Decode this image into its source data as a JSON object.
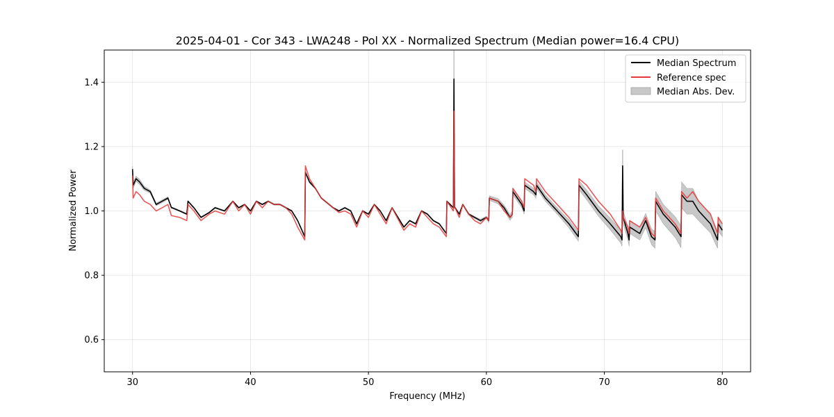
{
  "chart_data": {
    "type": "line",
    "title": "2025-04-01 - Cor 343 - LWA248 - Pol XX - Normalized Spectrum (Median power=16.4 CPU)",
    "xlabel": "Frequency (MHz)",
    "ylabel": "Normalized Power",
    "xlim": [
      27.6,
      82.4
    ],
    "ylim": [
      0.5,
      1.5
    ],
    "xticks": [
      30,
      40,
      50,
      60,
      70,
      80
    ],
    "yticks": [
      0.6,
      0.8,
      1.0,
      1.2,
      1.4
    ],
    "xtick_labels": [
      "30",
      "40",
      "50",
      "60",
      "70",
      "80"
    ],
    "ytick_labels": [
      "0.6",
      "0.8",
      "1.0",
      "1.2",
      "1.4"
    ],
    "grid": true,
    "legend_position": "top-right",
    "series": [
      {
        "name": "Median Spectrum",
        "color": "#000000",
        "x": [
          30,
          30.05,
          30.3,
          30.6,
          31.0,
          31.5,
          32.0,
          32.5,
          33.0,
          33.3,
          33.35,
          34.0,
          34.6,
          34.7,
          35.2,
          35.8,
          36.5,
          37.0,
          37.8,
          38.5,
          39.0,
          39.5,
          40.0,
          40.5,
          41.0,
          41.5,
          42.0,
          42.5,
          43.0,
          43.5,
          44.0,
          44.6,
          44.65,
          45.0,
          45.5,
          46.0,
          47.0,
          47.5,
          48.0,
          48.5,
          49.0,
          49.5,
          50.0,
          50.5,
          51.0,
          51.5,
          52.0,
          53.0,
          53.5,
          54.0,
          54.5,
          55.0,
          55.5,
          56.0,
          56.6,
          56.65,
          57.2,
          57.25,
          57.3,
          57.35,
          57.7,
          58.0,
          58.5,
          59.0,
          59.5,
          60.0,
          60.2,
          60.25,
          61.0,
          61.5,
          62.0,
          62.2,
          62.25,
          63.0,
          63.2,
          63.25,
          64.0,
          64.2,
          64.25,
          65.0,
          66.0,
          67.0,
          67.8,
          67.85,
          68.5,
          69.5,
          70.5,
          71.4,
          71.5,
          71.55,
          71.6,
          72.0,
          72.1,
          72.15,
          73.0,
          73.5,
          74.0,
          74.3,
          74.35,
          75.0,
          76.0,
          76.5,
          76.55,
          77.0,
          77.5,
          78.0,
          79.0,
          79.6,
          79.65,
          80.0
        ],
        "values": [
          1.13,
          1.08,
          1.1,
          1.09,
          1.07,
          1.06,
          1.02,
          1.03,
          1.04,
          1.01,
          1.01,
          1.0,
          0.99,
          1.03,
          1.01,
          0.98,
          0.995,
          1.01,
          1.0,
          1.03,
          1.01,
          1.02,
          1.0,
          1.03,
          1.02,
          1.03,
          1.02,
          1.02,
          1.01,
          1.0,
          0.97,
          0.92,
          1.12,
          1.09,
          1.07,
          1.04,
          1.01,
          1.0,
          1.01,
          1.0,
          0.96,
          1.0,
          0.99,
          1.02,
          1.0,
          0.97,
          1.01,
          0.95,
          0.97,
          0.96,
          1.0,
          0.99,
          0.97,
          0.96,
          0.93,
          1.03,
          1.01,
          1.41,
          1.01,
          1.01,
          0.99,
          1.02,
          0.99,
          0.98,
          0.97,
          0.98,
          0.97,
          1.04,
          1.03,
          1.01,
          0.98,
          0.99,
          1.06,
          1.02,
          1.0,
          1.08,
          1.06,
          1.05,
          1.08,
          1.04,
          1.0,
          0.96,
          0.92,
          1.08,
          1.05,
          1.0,
          0.96,
          0.92,
          0.91,
          1.14,
          0.98,
          0.93,
          0.91,
          0.95,
          0.93,
          0.97,
          0.92,
          0.91,
          1.03,
          0.99,
          0.95,
          0.92,
          1.05,
          1.03,
          1.03,
          1.0,
          0.96,
          0.91,
          0.96,
          0.94
        ],
        "mad_halfwidth": [
          0.01,
          0.01,
          0.008,
          0.008,
          0.006,
          0.005,
          0.004,
          0.004,
          0.004,
          0.002,
          0.002,
          0.002,
          0.002,
          0.002,
          0.002,
          0.002,
          0.002,
          0.002,
          0.002,
          0.002,
          0.002,
          0.002,
          0.002,
          0.002,
          0.002,
          0.002,
          0.002,
          0.002,
          0.002,
          0.002,
          0.002,
          0.003,
          0.003,
          0.003,
          0.002,
          0.002,
          0.002,
          0.002,
          0.002,
          0.002,
          0.002,
          0.002,
          0.002,
          0.002,
          0.002,
          0.002,
          0.002,
          0.002,
          0.002,
          0.002,
          0.002,
          0.002,
          0.002,
          0.002,
          0.002,
          0.002,
          0.002,
          0.09,
          0.002,
          0.002,
          0.002,
          0.002,
          0.003,
          0.003,
          0.004,
          0.004,
          0.006,
          0.007,
          0.008,
          0.008,
          0.009,
          0.01,
          0.01,
          0.01,
          0.01,
          0.01,
          0.01,
          0.01,
          0.01,
          0.01,
          0.01,
          0.012,
          0.014,
          0.014,
          0.015,
          0.016,
          0.018,
          0.02,
          0.02,
          0.05,
          0.02,
          0.02,
          0.02,
          0.02,
          0.02,
          0.022,
          0.024,
          0.026,
          0.03,
          0.03,
          0.032,
          0.034,
          0.04,
          0.04,
          0.04,
          0.03,
          0.028,
          0.026,
          0.022,
          0.02
        ]
      },
      {
        "name": "Reference spec",
        "color": "#e8393a",
        "x": [
          30,
          30.05,
          30.3,
          30.6,
          31.0,
          31.5,
          32.0,
          32.5,
          33.0,
          33.3,
          33.35,
          34.0,
          34.6,
          34.7,
          35.2,
          35.8,
          36.5,
          37.0,
          37.8,
          38.5,
          39.0,
          39.5,
          40.0,
          40.5,
          41.0,
          41.5,
          42.0,
          42.5,
          43.0,
          43.5,
          44.0,
          44.6,
          44.65,
          45.0,
          45.5,
          46.0,
          47.0,
          47.5,
          48.0,
          48.5,
          49.0,
          49.5,
          50.0,
          50.5,
          51.0,
          51.5,
          52.0,
          53.0,
          53.5,
          54.0,
          54.5,
          55.0,
          55.5,
          56.0,
          56.6,
          56.65,
          57.2,
          57.25,
          57.3,
          57.35,
          57.7,
          58.0,
          58.5,
          59.0,
          59.5,
          60.0,
          60.2,
          60.25,
          61.0,
          61.5,
          62.0,
          62.2,
          62.25,
          63.0,
          63.2,
          63.25,
          64.0,
          64.2,
          64.25,
          65.0,
          66.0,
          67.0,
          67.8,
          67.85,
          68.5,
          69.5,
          70.5,
          71.4,
          71.5,
          71.55,
          71.6,
          72.0,
          72.1,
          72.15,
          73.0,
          73.5,
          74.0,
          74.3,
          74.35,
          75.0,
          76.0,
          76.5,
          76.55,
          77.0,
          77.5,
          78.0,
          79.0,
          79.6,
          79.65,
          80.0
        ],
        "values": [
          1.11,
          1.04,
          1.06,
          1.05,
          1.03,
          1.02,
          1.0,
          1.01,
          1.02,
          0.985,
          0.985,
          0.98,
          0.97,
          1.02,
          1.0,
          0.97,
          0.99,
          1.0,
          0.99,
          1.03,
          1.0,
          1.02,
          0.99,
          1.03,
          1.01,
          1.03,
          1.02,
          1.02,
          1.01,
          0.99,
          0.95,
          0.91,
          1.14,
          1.1,
          1.07,
          1.04,
          1.01,
          0.995,
          1.0,
          0.99,
          0.95,
          1.0,
          0.98,
          1.02,
          0.99,
          0.96,
          1.01,
          0.94,
          0.96,
          0.95,
          1.0,
          0.98,
          0.96,
          0.95,
          0.92,
          1.03,
          1.0,
          1.31,
          1.01,
          1.01,
          0.98,
          1.02,
          0.99,
          0.97,
          0.96,
          0.98,
          0.97,
          1.04,
          1.03,
          1.0,
          0.98,
          0.99,
          1.07,
          1.03,
          1.01,
          1.1,
          1.08,
          1.06,
          1.1,
          1.06,
          1.02,
          0.98,
          0.94,
          1.1,
          1.08,
          1.03,
          0.99,
          0.94,
          0.93,
          1.0,
          0.98,
          0.95,
          0.93,
          0.97,
          0.95,
          0.98,
          0.93,
          0.92,
          1.04,
          1.0,
          0.96,
          0.93,
          1.06,
          1.04,
          1.06,
          1.03,
          0.99,
          0.93,
          0.98,
          0.96
        ]
      }
    ],
    "legend": [
      {
        "label": "Median Spectrum",
        "kind": "line",
        "color": "#000000"
      },
      {
        "label": "Reference spec",
        "kind": "line",
        "color": "#e8393a"
      },
      {
        "label": "Median Abs. Dev.",
        "kind": "patch",
        "color": "#c8c8c8"
      }
    ]
  }
}
